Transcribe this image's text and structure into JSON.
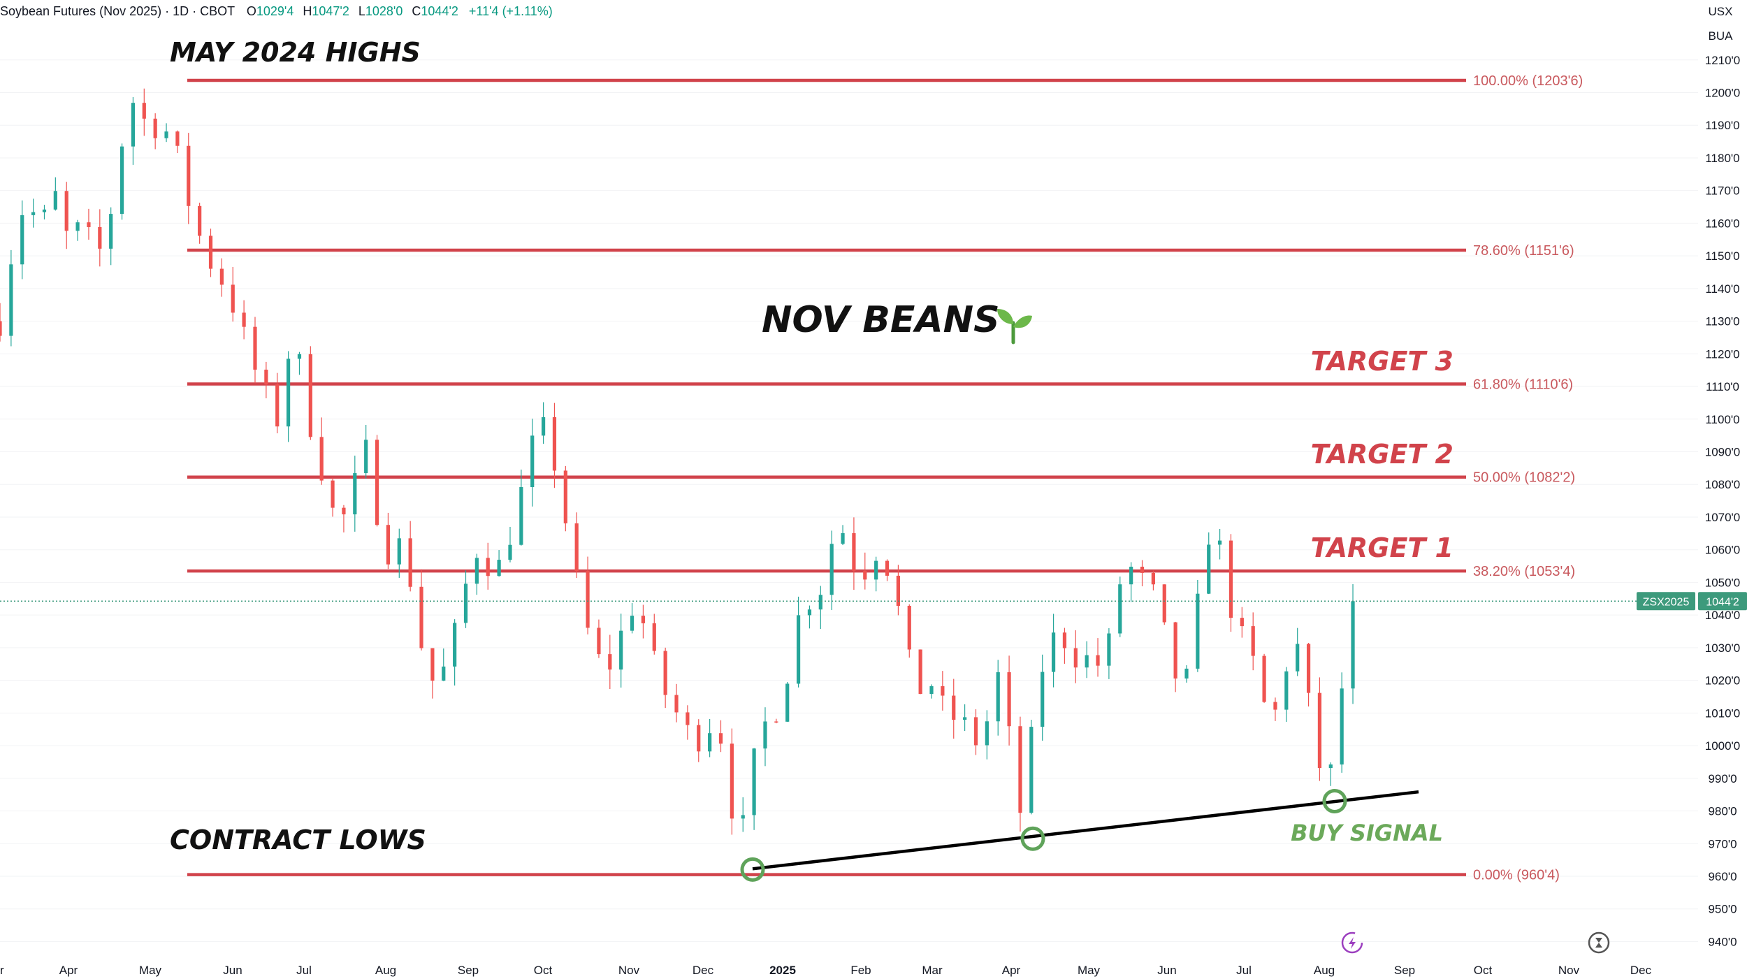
{
  "header": {
    "symbol": "Soybean Futures (Nov 2025) · 1D · CBOT",
    "open_label": "O",
    "open": "1029'4",
    "high_label": "H",
    "high": "1047'2",
    "low_label": "L",
    "low": "1028'0",
    "close_label": "C",
    "close": "1044'2",
    "change": "+11'4 (+1.11%)"
  },
  "units": {
    "currency": "USX",
    "unit": "BUA"
  },
  "price_badge": {
    "symbol": "ZSX2025",
    "price": "1044'2"
  },
  "colors": {
    "fib_line": "#d1434b",
    "up_candle": "#26a69a",
    "down_candle": "#ef5350",
    "trendline": "#000000",
    "signal": "#5fa35a",
    "badge": "#3d9a7c"
  },
  "icons": [
    "lightning-icon",
    "hourglass-icon",
    "seedling-icon"
  ],
  "chart_data": {
    "type": "candlestick",
    "title": "NOV BEANS",
    "ylim": [
      935,
      1220
    ],
    "y_ticks": [
      1210,
      1200,
      1190,
      1180,
      1170,
      1160,
      1150,
      1140,
      1130,
      1120,
      1110,
      1100,
      1090,
      1080,
      1070,
      1060,
      1050,
      1040,
      1030,
      1020,
      1010,
      1000,
      990,
      980,
      970,
      960,
      950,
      940
    ],
    "y_tick_labels": [
      "1210'0",
      "1200'0",
      "1190'0",
      "1180'0",
      "1170'0",
      "1160'0",
      "1150'0",
      "1140'0",
      "1130'0",
      "1120'0",
      "1110'0",
      "1100'0",
      "1090'0",
      "1080'0",
      "1070'0",
      "1060'0",
      "1050'0",
      "1040'0",
      "1030'0",
      "1020'0",
      "1010'0",
      "1000'0",
      "990'0",
      "980'0",
      "970'0",
      "960'0",
      "950'0",
      "940'0"
    ],
    "x_tick_labels": [
      "r",
      "Apr",
      "May",
      "Jun",
      "Jul",
      "Aug",
      "Sep",
      "Oct",
      "Nov",
      "Dec",
      "2025",
      "Feb",
      "Mar",
      "Apr",
      "May",
      "Jun",
      "Jul",
      "Aug",
      "Sep",
      "Oct",
      "Nov",
      "Dec"
    ],
    "fib_levels": [
      {
        "pct": "100.00%",
        "price": 1203.75,
        "label": "100.00% (1203'6)"
      },
      {
        "pct": "78.60%",
        "price": 1151.75,
        "label": "78.60% (1151'6)"
      },
      {
        "pct": "61.80%",
        "price": 1110.75,
        "label": "61.80% (1110'6)"
      },
      {
        "pct": "50.00%",
        "price": 1082.25,
        "label": "50.00% (1082'2)"
      },
      {
        "pct": "38.20%",
        "price": 1053.5,
        "label": "38.20% (1053'4)"
      },
      {
        "pct": "0.00%",
        "price": 960.5,
        "label": "0.00% (960'4)"
      }
    ],
    "annotations": {
      "may_highs": "MAY 2024 HIGHS",
      "contract_lows": "CONTRACT LOWS",
      "title": "NOV BEANS",
      "target3": "TARGET 3",
      "target2": "TARGET 2",
      "target1": "TARGET 1",
      "buy_signal": "BUY SIGNAL"
    },
    "trendline": {
      "from": {
        "date": "2024-12-20",
        "price": 961
      },
      "to": {
        "date": "2025-08-28",
        "price": 985
      }
    },
    "signal_points": [
      {
        "date": "2024-12-20",
        "price": 961
      },
      {
        "date": "2025-04-09",
        "price": 971.5
      },
      {
        "date": "2025-08-13",
        "price": 983
      }
    ],
    "last_price": 1044.25,
    "price_path": [
      [
        0,
        1130
      ],
      [
        6,
        1160
      ],
      [
        10,
        1168
      ],
      [
        14,
        1158
      ],
      [
        20,
        1168
      ],
      [
        26,
        1150
      ],
      [
        30,
        1165
      ],
      [
        34,
        1145
      ],
      [
        38,
        1158
      ],
      [
        42,
        1170
      ],
      [
        46,
        1200
      ],
      [
        50,
        1195
      ],
      [
        54,
        1188
      ],
      [
        58,
        1192
      ],
      [
        64,
        1180
      ],
      [
        70,
        1160
      ],
      [
        76,
        1148
      ],
      [
        82,
        1140
      ],
      [
        88,
        1125
      ],
      [
        94,
        1110
      ],
      [
        100,
        1100
      ],
      [
        104,
        1120
      ],
      [
        106,
        1128
      ],
      [
        110,
        1105
      ],
      [
        116,
        1085
      ],
      [
        122,
        1065
      ],
      [
        128,
        1080
      ],
      [
        132,
        1090
      ],
      [
        136,
        1072
      ],
      [
        140,
        1060
      ],
      [
        146,
        1062
      ],
      [
        150,
        1040
      ],
      [
        154,
        1022
      ],
      [
        158,
        1018
      ],
      [
        162,
        1028
      ],
      [
        166,
        1040
      ],
      [
        170,
        1058
      ],
      [
        174,
        1062
      ],
      [
        178,
        1050
      ],
      [
        182,
        1060
      ],
      [
        186,
        1070
      ],
      [
        190,
        1085
      ],
      [
        194,
        1098
      ],
      [
        198,
        1095
      ],
      [
        202,
        1078
      ],
      [
        206,
        1060
      ],
      [
        210,
        1040
      ],
      [
        214,
        1030
      ],
      [
        218,
        1022
      ],
      [
        222,
        1028
      ],
      [
        226,
        1040
      ],
      [
        230,
        1045
      ],
      [
        234,
        1030
      ],
      [
        238,
        1020
      ],
      [
        242,
        1012
      ],
      [
        246,
        1008
      ],
      [
        250,
        1000
      ],
      [
        254,
        1005
      ],
      [
        258,
        1008
      ],
      [
        262,
        998
      ],
      [
        266,
        965
      ],
      [
        270,
        985
      ],
      [
        274,
        1005
      ],
      [
        278,
        1008
      ],
      [
        282,
        1015
      ],
      [
        286,
        1030
      ],
      [
        290,
        1048
      ],
      [
        294,
        1042
      ],
      [
        298,
        1055
      ],
      [
        302,
        1070
      ],
      [
        306,
        1062
      ],
      [
        310,
        1050
      ],
      [
        314,
        1058
      ],
      [
        318,
        1062
      ],
      [
        322,
        1048
      ],
      [
        326,
        1035
      ],
      [
        330,
        1015
      ],
      [
        334,
        1020
      ],
      [
        338,
        1018
      ],
      [
        342,
        1005
      ],
      [
        346,
        1012
      ],
      [
        350,
        1000
      ],
      [
        354,
        1003
      ],
      [
        358,
        1012
      ],
      [
        362,
        1030
      ],
      [
        366,
        975
      ],
      [
        370,
        985
      ],
      [
        374,
        1018
      ],
      [
        378,
        1030
      ],
      [
        382,
        1035
      ],
      [
        386,
        1030
      ],
      [
        390,
        1025
      ],
      [
        394,
        1028
      ],
      [
        398,
        1022
      ],
      [
        402,
        1040
      ],
      [
        406,
        1060
      ],
      [
        410,
        1048
      ],
      [
        414,
        1052
      ],
      [
        418,
        1040
      ],
      [
        422,
        1028
      ],
      [
        426,
        1015
      ],
      [
        430,
        1025
      ],
      [
        434,
        1060
      ],
      [
        438,
        1070
      ],
      [
        442,
        1050
      ],
      [
        446,
        1035
      ],
      [
        450,
        1030
      ],
      [
        454,
        1020
      ],
      [
        458,
        1005
      ],
      [
        462,
        1015
      ],
      [
        466,
        1035
      ],
      [
        470,
        1025
      ],
      [
        474,
        1000
      ],
      [
        478,
        988
      ],
      [
        482,
        995
      ],
      [
        486,
        1040
      ],
      [
        489,
        1044.25
      ]
    ]
  }
}
